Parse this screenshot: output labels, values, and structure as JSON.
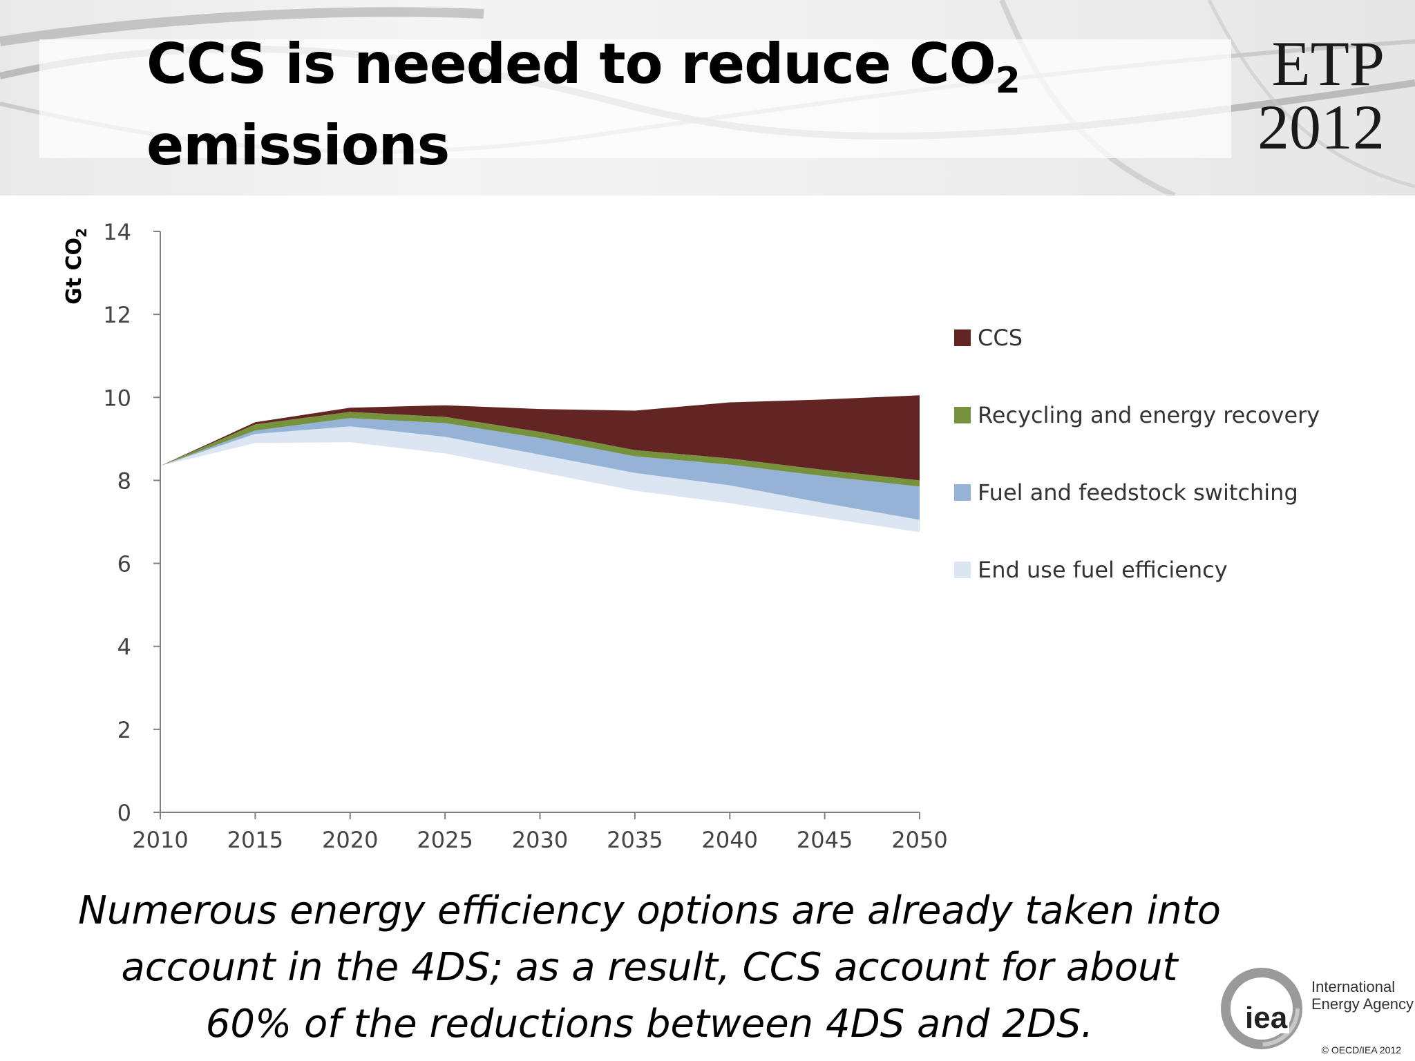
{
  "header": {
    "title_part1": "CCS is needed to reduce CO",
    "title_sub": "2",
    "title_part2": "emissions",
    "badge_line1": "ETP",
    "badge_line2": "2012"
  },
  "caption": "Numerous energy efficiency options are already taken into account in the 4DS; as a result, CCS account for about 60% of the reductions between 4DS and 2DS.",
  "footer": {
    "org_line1": "International",
    "org_line2": "Energy Agency",
    "logo_text": "iea",
    "copyright": "© OECD/IEA 2012"
  },
  "chart_data": {
    "type": "area",
    "stacked": true,
    "ylabel_main": "Gt CO",
    "ylabel_sub": "2",
    "xlabel": "",
    "ylim": [
      0,
      14
    ],
    "yticks": [
      0,
      2,
      4,
      6,
      8,
      10,
      12,
      14
    ],
    "x": [
      2010,
      2015,
      2020,
      2025,
      2030,
      2035,
      2040,
      2045,
      2050
    ],
    "grid": false,
    "legend_position": "right",
    "baseline_2ds": [
      8.35,
      8.9,
      8.92,
      8.65,
      8.2,
      7.75,
      7.45,
      7.1,
      6.75
    ],
    "series": [
      {
        "name": "End use fuel efficiency",
        "color": "#dce6f2",
        "values": [
          0.0,
          0.22,
          0.38,
          0.4,
          0.42,
          0.43,
          0.43,
          0.35,
          0.3
        ]
      },
      {
        "name": "Fuel and feedstock switching",
        "color": "#95b3d7",
        "values": [
          0.0,
          0.08,
          0.2,
          0.33,
          0.4,
          0.4,
          0.5,
          0.65,
          0.8
        ]
      },
      {
        "name": "Recycling and energy recovery",
        "color": "#76923c",
        "values": [
          0.0,
          0.15,
          0.15,
          0.15,
          0.15,
          0.15,
          0.15,
          0.15,
          0.15
        ]
      },
      {
        "name": "CCS",
        "color": "#632523",
        "values": [
          0.0,
          0.05,
          0.1,
          0.28,
          0.55,
          0.95,
          1.35,
          1.7,
          2.05
        ]
      }
    ],
    "legend_order": [
      "CCS",
      "Recycling and energy recovery",
      "Fuel and feedstock switching",
      "End use fuel efficiency"
    ]
  }
}
